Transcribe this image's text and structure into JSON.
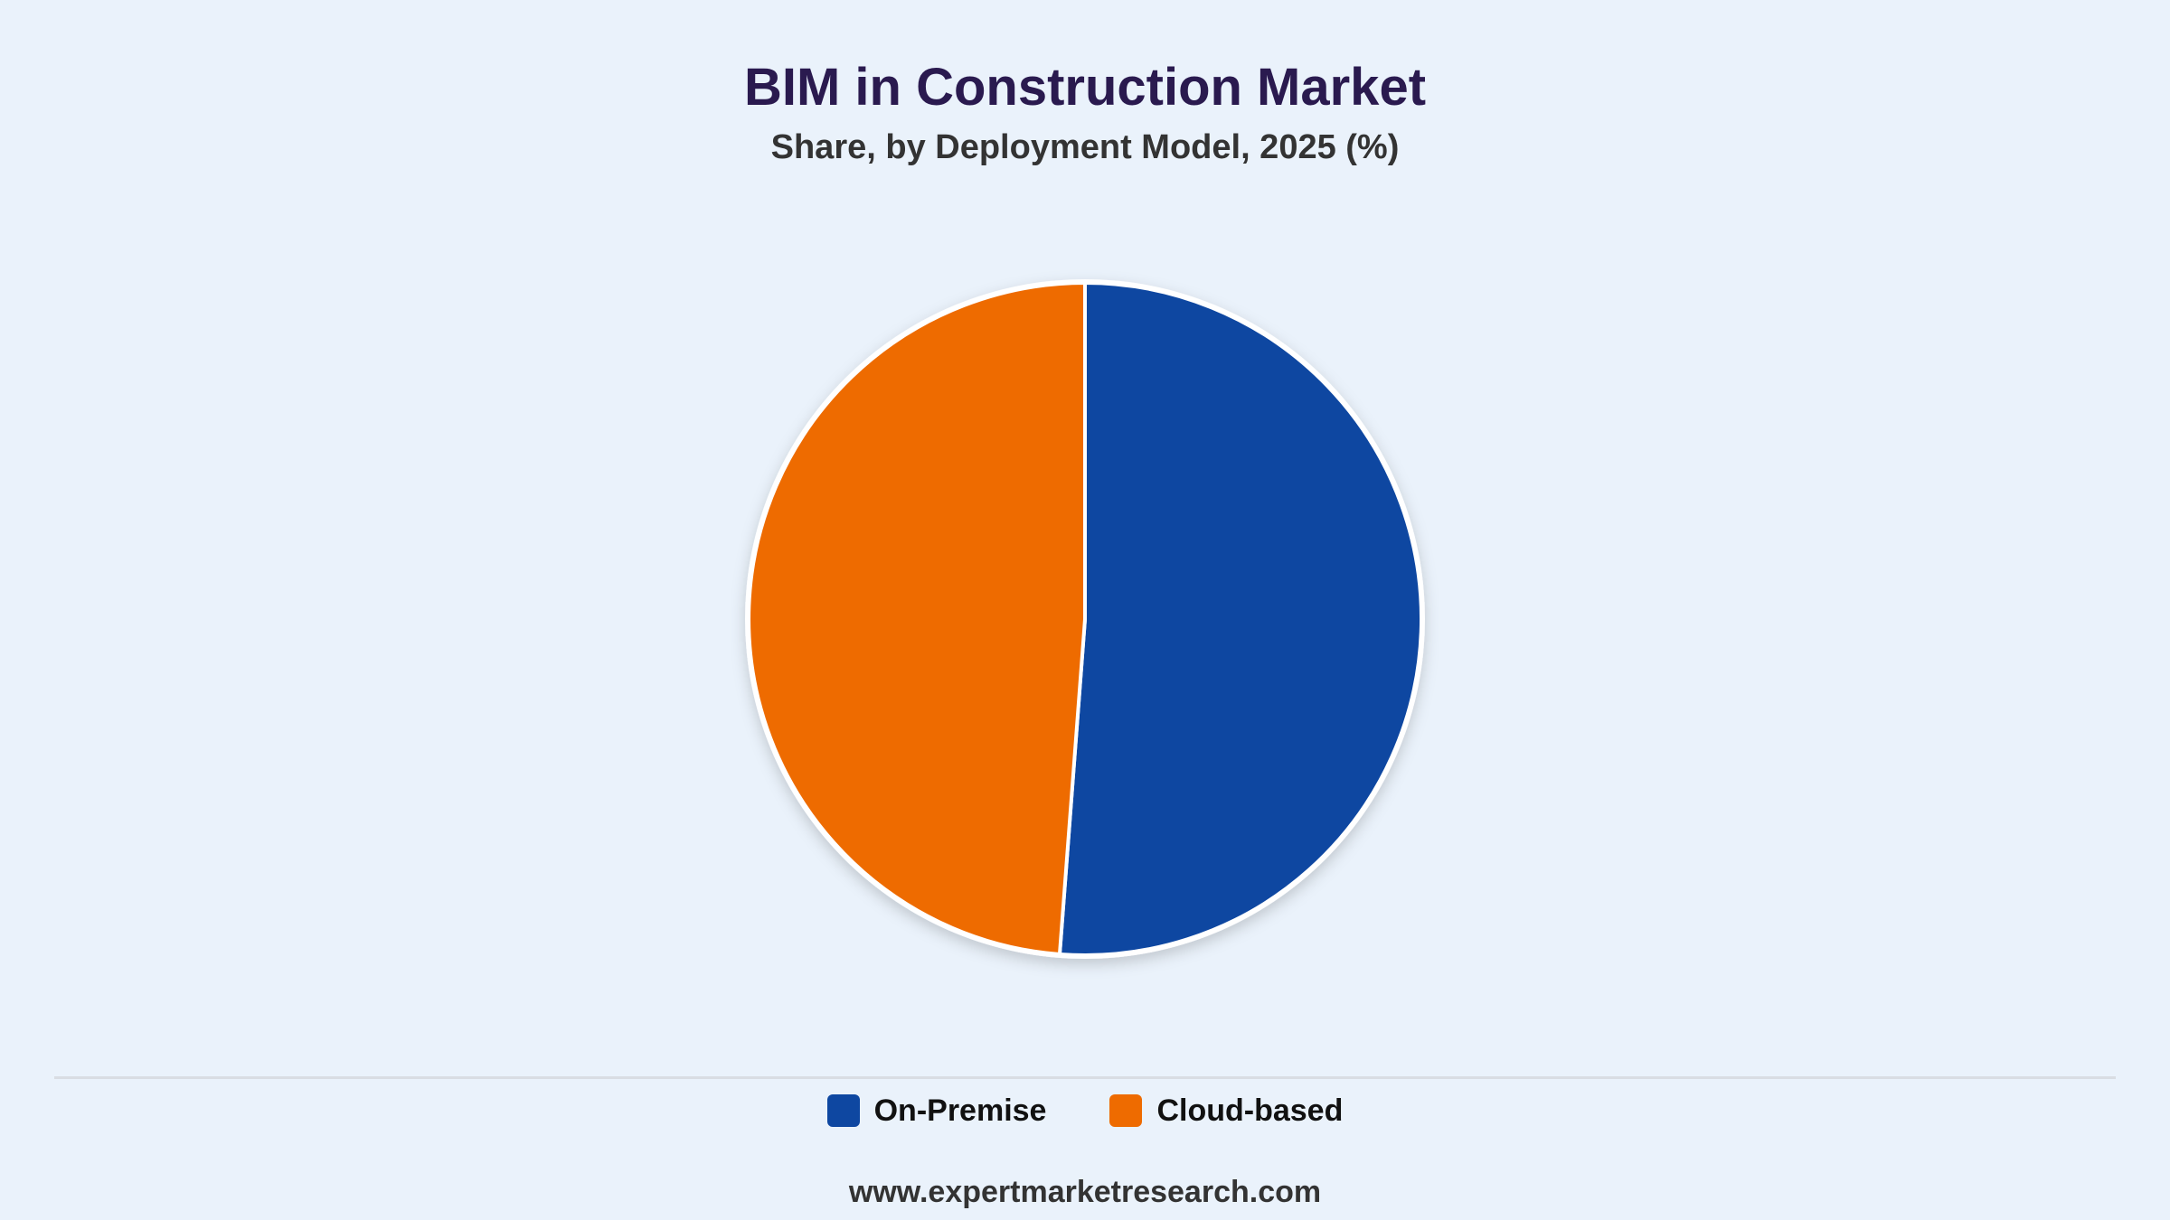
{
  "chart_data": {
    "type": "pie",
    "title": "BIM in Construction Market",
    "subtitle": "Share, by Deployment Model, 2025 (%)",
    "categories": [
      "On-Premise",
      "Cloud-based"
    ],
    "values": [
      51.2,
      48.8
    ],
    "colors": [
      "#0e47a1",
      "#ee6b00"
    ],
    "start_angle_deg": 0,
    "direction": "clockwise",
    "legend_position": "bottom",
    "data_labels": false
  },
  "footer": {
    "source": "www.expertmarketresearch.com"
  }
}
